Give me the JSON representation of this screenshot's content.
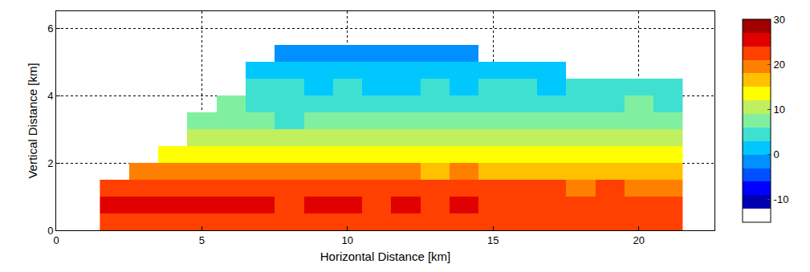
{
  "chart_data": {
    "type": "heatmap",
    "x_label": "Horizontal Distance [km]",
    "y_label": "Vertical Distance [km]",
    "x": [
      2,
      3,
      4,
      5,
      6,
      7,
      8,
      9,
      10,
      11,
      12,
      13,
      14,
      15,
      16,
      17,
      18,
      19,
      20,
      21
    ],
    "y": [
      0.25,
      0.75,
      1.25,
      1.75,
      2.25,
      2.75,
      3.25,
      3.75,
      4.25,
      4.75,
      5.25,
      5.75
    ],
    "z": [
      [
        22,
        23,
        22,
        23,
        22,
        22,
        23,
        22,
        22,
        21,
        22,
        22,
        21,
        22,
        22,
        21,
        22,
        21,
        22,
        21
      ],
      [
        24,
        24,
        25,
        24,
        24,
        24,
        23,
        24,
        24,
        23,
        24,
        23,
        24,
        23,
        23,
        23,
        22,
        23,
        22,
        22
      ],
      [
        23,
        23,
        23,
        23,
        23,
        22,
        23,
        22,
        23,
        22,
        22,
        22,
        22,
        21,
        21,
        21,
        20,
        21,
        20,
        20
      ],
      [
        null,
        19,
        19,
        18,
        19,
        18,
        19,
        18,
        18,
        18,
        18,
        17,
        18,
        17,
        17,
        17,
        17,
        16,
        17,
        16
      ],
      [
        null,
        null,
        14,
        14,
        13,
        14,
        13,
        13,
        13,
        13,
        12,
        13,
        12,
        12,
        12,
        13,
        12,
        12,
        12,
        12
      ],
      [
        null,
        null,
        null,
        11,
        10,
        11,
        10,
        10,
        10,
        9,
        10,
        9,
        10,
        9,
        9,
        9,
        9,
        10,
        9,
        9
      ],
      [
        null,
        null,
        null,
        8,
        7,
        6,
        4,
        6,
        7,
        6,
        6,
        7,
        6,
        6,
        6,
        7,
        6,
        7,
        6,
        6
      ],
      [
        null,
        null,
        null,
        null,
        6,
        5,
        5,
        5,
        4,
        5,
        5,
        5,
        5,
        4,
        5,
        5,
        5,
        5,
        6,
        5
      ],
      [
        null,
        null,
        null,
        null,
        null,
        3,
        3,
        2,
        3,
        1,
        2,
        3,
        2,
        3,
        3,
        2,
        3,
        3,
        4,
        3
      ],
      [
        null,
        null,
        null,
        null,
        null,
        1,
        1,
        0,
        1,
        0,
        1,
        1,
        2,
        1,
        1,
        1,
        null,
        null,
        null,
        null
      ],
      [
        null,
        null,
        null,
        null,
        null,
        null,
        -3,
        -2,
        -3,
        -1,
        -2,
        -2,
        -1,
        null,
        null,
        null,
        null,
        null,
        null,
        null
      ],
      [
        null,
        null,
        null,
        null,
        null,
        null,
        null,
        null,
        null,
        null,
        null,
        null,
        null,
        null,
        null,
        null,
        null,
        null,
        null,
        null
      ]
    ],
    "zlim": [
      -15,
      30
    ],
    "zticks": [
      -10,
      0,
      10,
      20,
      30
    ],
    "xlim": [
      0,
      22.6
    ],
    "ylim": [
      0,
      6.5
    ],
    "xticks": [
      0,
      5,
      10,
      15,
      20
    ],
    "yticks": [
      0,
      2,
      4,
      6
    ],
    "grid": true
  }
}
